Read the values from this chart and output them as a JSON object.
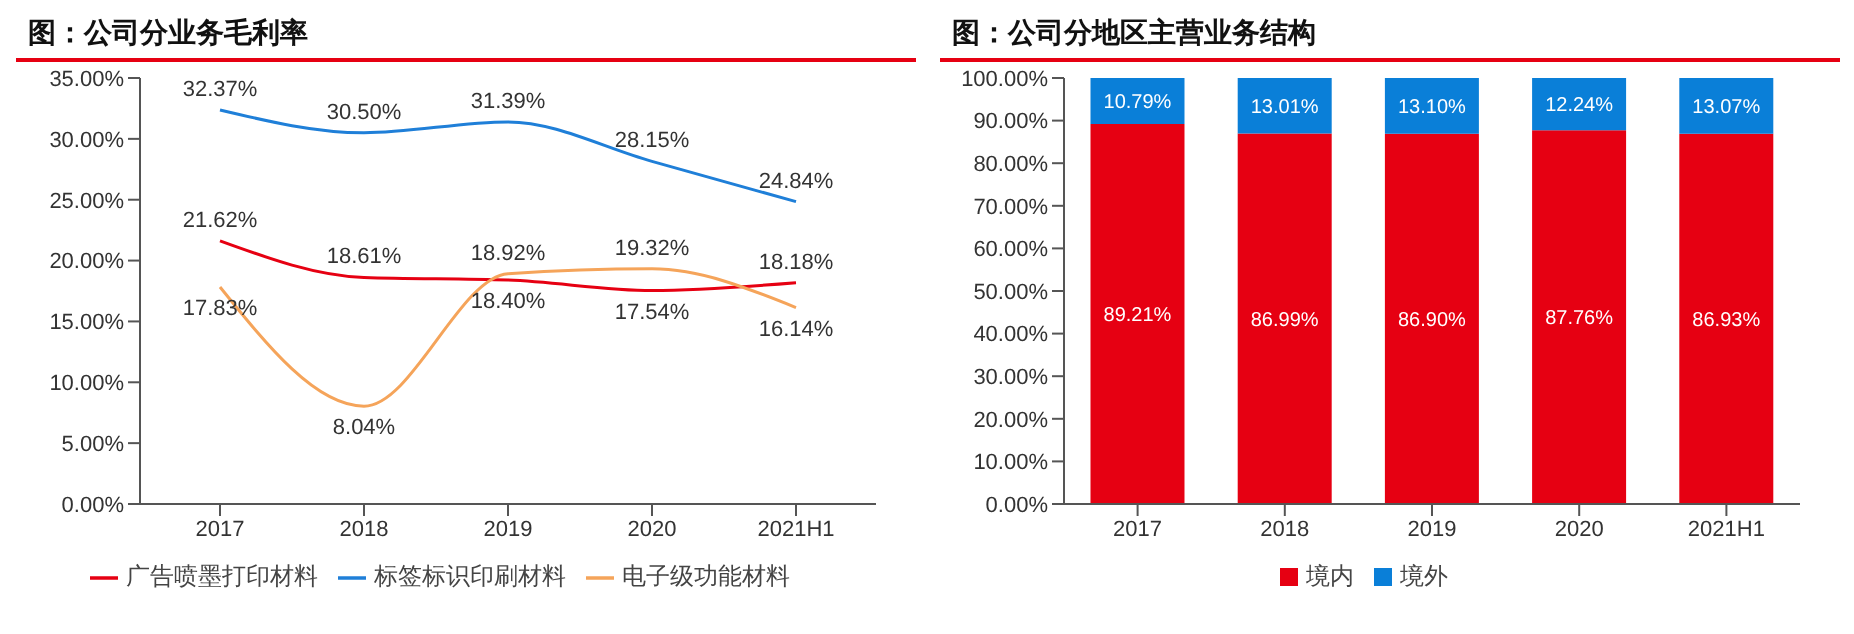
{
  "chart_data": [
    {
      "type": "line",
      "title": "图：公司分业务毛利率",
      "categories": [
        "2017",
        "2018",
        "2019",
        "2020",
        "2021H1"
      ],
      "series": [
        {
          "name": "广告喷墨打印材料",
          "color": "#e60012",
          "values": [
            21.62,
            18.61,
            18.4,
            17.54,
            18.18
          ],
          "value_labels": [
            "21.62%",
            "18.61%",
            "18.40%",
            "17.54%",
            "18.18%"
          ]
        },
        {
          "name": "标签标识印刷材料",
          "color": "#1f7fd8",
          "values": [
            32.37,
            30.5,
            31.39,
            28.15,
            24.84
          ],
          "value_labels": [
            "32.37%",
            "30.50%",
            "31.39%",
            "28.15%",
            "24.84%"
          ]
        },
        {
          "name": "电子级功能材料",
          "color": "#f5a45a",
          "values": [
            17.83,
            8.04,
            18.92,
            19.32,
            16.14
          ],
          "value_labels": [
            "17.83%",
            "8.04%",
            "18.92%",
            "19.32%",
            "16.14%"
          ]
        }
      ],
      "ylim": [
        0,
        35
      ],
      "yticks": [
        {
          "value": 0,
          "label": "0.00%"
        },
        {
          "value": 5,
          "label": "5.00%"
        },
        {
          "value": 10,
          "label": "10.00%"
        },
        {
          "value": 15,
          "label": "15.00%"
        },
        {
          "value": 20,
          "label": "20.00%"
        },
        {
          "value": 25,
          "label": "25.00%"
        },
        {
          "value": 30,
          "label": "30.00%"
        },
        {
          "value": 35,
          "label": "35.00%"
        }
      ],
      "grid": false,
      "legend": "bottom",
      "marker": "none",
      "line_style": "solid"
    },
    {
      "type": "bar",
      "stacked": true,
      "title": "图：公司分地区主营业务结构",
      "categories": [
        "2017",
        "2018",
        "2019",
        "2020",
        "2021H1"
      ],
      "series": [
        {
          "name": "境内",
          "color": "#e60012",
          "values": [
            89.21,
            86.99,
            86.9,
            87.76,
            86.93
          ],
          "value_labels": [
            "89.21%",
            "86.99%",
            "86.90%",
            "87.76%",
            "86.93%"
          ]
        },
        {
          "name": "境外",
          "color": "#0a7fd8",
          "values": [
            10.79,
            13.01,
            13.1,
            12.24,
            13.07
          ],
          "value_labels": [
            "10.79%",
            "13.01%",
            "13.10%",
            "12.24%",
            "13.07%"
          ]
        }
      ],
      "ylim": [
        0,
        100
      ],
      "yticks": [
        {
          "value": 0,
          "label": "0.00%"
        },
        {
          "value": 10,
          "label": "10.00%"
        },
        {
          "value": 20,
          "label": "20.00%"
        },
        {
          "value": 30,
          "label": "30.00%"
        },
        {
          "value": 40,
          "label": "40.00%"
        },
        {
          "value": 50,
          "label": "50.00%"
        },
        {
          "value": 60,
          "label": "60.00%"
        },
        {
          "value": 70,
          "label": "70.00%"
        },
        {
          "value": 80,
          "label": "80.00%"
        },
        {
          "value": 90,
          "label": "90.00%"
        },
        {
          "value": 100,
          "label": "100.00%"
        }
      ],
      "grid": false,
      "legend": "bottom"
    }
  ]
}
